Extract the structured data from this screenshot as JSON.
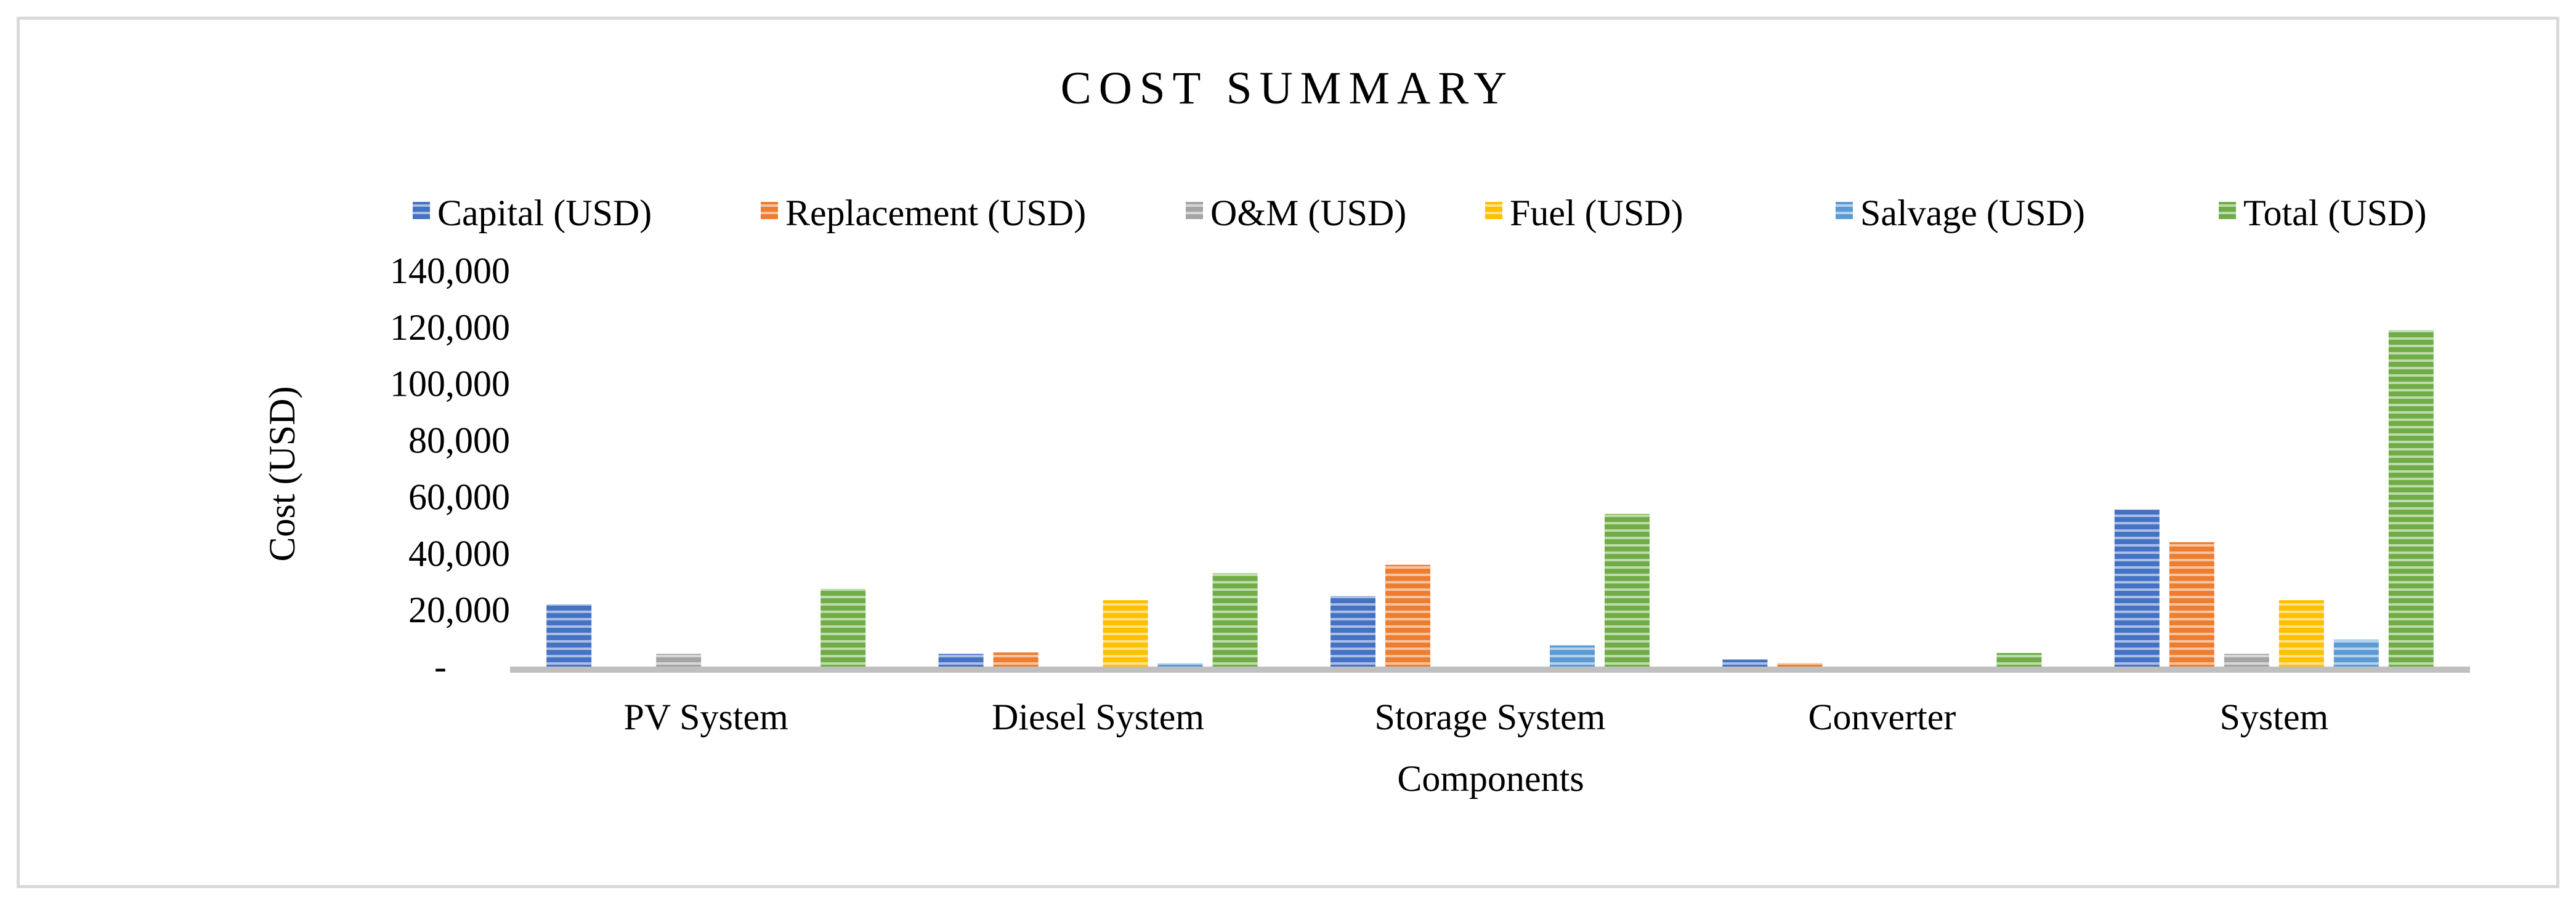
{
  "chart_data": {
    "type": "bar",
    "title": "COST SUMMARY",
    "xlabel": "Components",
    "ylabel": "Cost (USD)",
    "ylim": [
      0,
      140000
    ],
    "yticks": [
      {
        "value": 0,
        "label": "-"
      },
      {
        "value": 20000,
        "label": "20,000"
      },
      {
        "value": 40000,
        "label": "40,000"
      },
      {
        "value": 60000,
        "label": "60,000"
      },
      {
        "value": 80000,
        "label": "80,000"
      },
      {
        "value": 100000,
        "label": "100,000"
      },
      {
        "value": 120000,
        "label": "120,000"
      },
      {
        "value": 140000,
        "label": "140,000"
      }
    ],
    "categories": [
      "PV System",
      "Diesel System",
      "Storage System",
      "Converter",
      "System"
    ],
    "legend_position": "top",
    "grid": false,
    "series": [
      {
        "name": "Capital (USD)",
        "color": "#4472c4",
        "values": [
          22000,
          4500,
          25000,
          2500,
          55500
        ]
      },
      {
        "name": "Replacement (USD)",
        "color": "#ed7d31",
        "values": [
          0,
          5000,
          36000,
          1200,
          44000
        ]
      },
      {
        "name": "O&M (USD)",
        "color": "#a5a5a5",
        "values": [
          4500,
          0,
          0,
          0,
          4500
        ]
      },
      {
        "name": "Fuel (USD)",
        "color": "#ffc000",
        "values": [
          0,
          23500,
          0,
          0,
          23500
        ]
      },
      {
        "name": "Salvage (USD)",
        "color": "#5b9bd5",
        "values": [
          0,
          1200,
          7500,
          0,
          9500
        ]
      },
      {
        "name": "Total (USD)",
        "color": "#70ad47",
        "values": [
          27500,
          33000,
          54000,
          4800,
          119000
        ]
      }
    ]
  }
}
